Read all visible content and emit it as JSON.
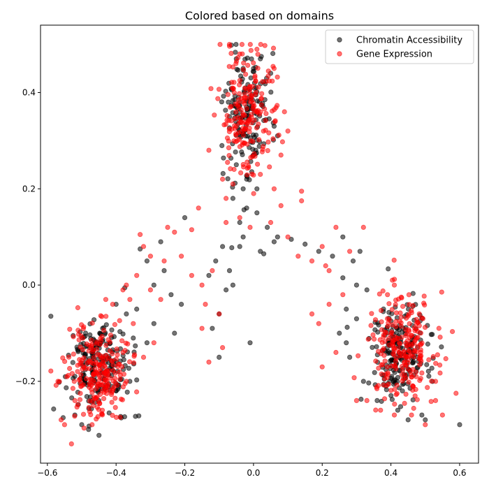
{
  "chart_data": {
    "type": "scatter",
    "title": "Colored based on domains",
    "xlabel": "",
    "ylabel": "",
    "xlim": [
      -0.62,
      0.655
    ],
    "ylim": [
      -0.37,
      0.54
    ],
    "x_ticks": [
      -0.6,
      -0.4,
      -0.2,
      0.0,
      0.2,
      0.4,
      0.6
    ],
    "x_tick_labels": [
      "−0.6",
      "−0.4",
      "−0.2",
      "0.0",
      "0.2",
      "0.4",
      "0.6"
    ],
    "y_ticks": [
      -0.2,
      0.0,
      0.2,
      0.4
    ],
    "y_tick_labels": [
      "−0.2",
      "0.0",
      "0.2",
      "0.4"
    ],
    "grid": false,
    "legend_position": "top-right",
    "series": [
      {
        "name": "Chromatin Accessibility",
        "color": "#000000",
        "alpha": 0.55,
        "clusters": [
          {
            "cx": -0.45,
            "cy": -0.17,
            "sx": 0.045,
            "sy": 0.05,
            "n": 200
          },
          {
            "cx": -0.02,
            "cy": 0.36,
            "sx": 0.035,
            "sy": 0.06,
            "n": 150
          },
          {
            "cx": 0.43,
            "cy": -0.14,
            "sx": 0.045,
            "sy": 0.05,
            "n": 200
          }
        ],
        "points": [
          {
            "x": -0.05,
            "y": 0.47
          },
          {
            "x": -0.03,
            "y": 0.45
          },
          {
            "x": 0.0,
            "y": 0.45
          },
          {
            "x": 0.05,
            "y": 0.44
          },
          {
            "x": 0.02,
            "y": 0.47
          },
          {
            "x": -0.04,
            "y": 0.38
          },
          {
            "x": -0.07,
            "y": 0.35
          },
          {
            "x": 0.06,
            "y": 0.33
          },
          {
            "x": 0.07,
            "y": 0.31
          },
          {
            "x": -0.05,
            "y": 0.25
          },
          {
            "x": -0.02,
            "y": 0.22
          },
          {
            "x": 0.0,
            "y": 0.27
          },
          {
            "x": -0.03,
            "y": 0.2
          },
          {
            "x": 0.01,
            "y": 0.2
          },
          {
            "x": -0.06,
            "y": 0.18
          },
          {
            "x": -0.02,
            "y": 0.16
          },
          {
            "x": 0.01,
            "y": 0.15
          },
          {
            "x": -0.04,
            "y": 0.13
          },
          {
            "x": -0.09,
            "y": 0.08
          },
          {
            "x": -0.04,
            "y": 0.08
          },
          {
            "x": -0.03,
            "y": 0.1
          },
          {
            "x": 0.04,
            "y": 0.12
          },
          {
            "x": 0.07,
            "y": 0.1
          },
          {
            "x": 0.02,
            "y": 0.07
          },
          {
            "x": -0.11,
            "y": 0.05
          },
          {
            "x": -0.07,
            "y": 0.03
          },
          {
            "x": -0.13,
            "y": 0.02
          },
          {
            "x": -0.06,
            "y": 0.0
          },
          {
            "x": -0.08,
            "y": -0.01
          },
          {
            "x": -0.1,
            "y": -0.06
          },
          {
            "x": -0.12,
            "y": -0.09
          },
          {
            "x": -0.1,
            "y": -0.15
          },
          {
            "x": -0.01,
            "y": -0.12
          },
          {
            "x": -0.27,
            "y": 0.09
          },
          {
            "x": -0.2,
            "y": 0.14
          },
          {
            "x": -0.33,
            "y": 0.075
          },
          {
            "x": -0.31,
            "y": 0.05
          },
          {
            "x": -0.26,
            "y": 0.03
          },
          {
            "x": -0.29,
            "y": 0.0
          },
          {
            "x": -0.24,
            "y": -0.02
          },
          {
            "x": -0.21,
            "y": -0.04
          },
          {
            "x": -0.34,
            "y": -0.05
          },
          {
            "x": -0.29,
            "y": -0.08
          },
          {
            "x": -0.23,
            "y": -0.1
          },
          {
            "x": -0.31,
            "y": -0.12
          },
          {
            "x": -0.35,
            "y": -0.11
          },
          {
            "x": -0.37,
            "y": -0.06
          },
          {
            "x": -0.4,
            "y": -0.04
          },
          {
            "x": 0.03,
            "y": 0.065
          },
          {
            "x": 0.06,
            "y": 0.09
          },
          {
            "x": 0.11,
            "y": 0.095
          },
          {
            "x": 0.15,
            "y": 0.085
          },
          {
            "x": 0.19,
            "y": 0.07
          },
          {
            "x": 0.23,
            "y": 0.06
          },
          {
            "x": 0.26,
            "y": 0.1
          },
          {
            "x": 0.29,
            "y": 0.05
          },
          {
            "x": 0.31,
            "y": 0.07
          },
          {
            "x": 0.26,
            "y": 0.015
          },
          {
            "x": 0.3,
            "y": 0.0
          },
          {
            "x": 0.33,
            "y": -0.01
          },
          {
            "x": 0.27,
            "y": -0.05
          },
          {
            "x": 0.3,
            "y": -0.07
          },
          {
            "x": 0.25,
            "y": -0.1
          },
          {
            "x": 0.27,
            "y": -0.12
          },
          {
            "x": 0.28,
            "y": -0.15
          },
          {
            "x": 0.32,
            "y": -0.2
          },
          {
            "x": 0.36,
            "y": -0.24
          },
          {
            "x": 0.42,
            "y": -0.26
          },
          {
            "x": 0.45,
            "y": -0.28
          },
          {
            "x": 0.49,
            "y": -0.27
          },
          {
            "x": 0.5,
            "y": -0.28
          },
          {
            "x": 0.6,
            "y": -0.29
          },
          {
            "x": -0.5,
            "y": -0.29
          },
          {
            "x": -0.48,
            "y": -0.3
          },
          {
            "x": -0.52,
            "y": -0.27
          },
          {
            "x": -0.45,
            "y": -0.24
          },
          {
            "x": -0.4,
            "y": -0.22
          },
          {
            "x": -0.36,
            "y": -0.2
          }
        ]
      },
      {
        "name": "Gene Expression",
        "color": "#ff0000",
        "alpha": 0.55,
        "clusters": [
          {
            "cx": -0.45,
            "cy": -0.18,
            "sx": 0.045,
            "sy": 0.05,
            "n": 230
          },
          {
            "cx": -0.02,
            "cy": 0.36,
            "sx": 0.04,
            "sy": 0.065,
            "n": 200
          },
          {
            "cx": 0.43,
            "cy": -0.13,
            "sx": 0.05,
            "sy": 0.055,
            "n": 230
          }
        ],
        "points": [
          {
            "x": -0.04,
            "y": 0.48
          },
          {
            "x": 0.01,
            "y": 0.49
          },
          {
            "x": 0.06,
            "y": 0.45
          },
          {
            "x": 0.09,
            "y": 0.36
          },
          {
            "x": 0.1,
            "y": 0.32
          },
          {
            "x": 0.08,
            "y": 0.27
          },
          {
            "x": -0.13,
            "y": 0.28
          },
          {
            "x": -0.09,
            "y": 0.22
          },
          {
            "x": -0.06,
            "y": 0.21
          },
          {
            "x": 0.02,
            "y": 0.23
          },
          {
            "x": 0.06,
            "y": 0.2
          },
          {
            "x": 0.14,
            "y": 0.195
          },
          {
            "x": 0.14,
            "y": 0.175
          },
          {
            "x": 0.08,
            "y": 0.165
          },
          {
            "x": -0.16,
            "y": 0.16
          },
          {
            "x": -0.08,
            "y": 0.18
          },
          {
            "x": -0.04,
            "y": 0.14
          },
          {
            "x": 0.05,
            "y": 0.13
          },
          {
            "x": 0.1,
            "y": 0.1
          },
          {
            "x": -0.08,
            "y": 0.13
          },
          {
            "x": -0.01,
            "y": 0.12
          },
          {
            "x": -0.25,
            "y": 0.12
          },
          {
            "x": -0.23,
            "y": 0.11
          },
          {
            "x": -0.18,
            "y": 0.115
          },
          {
            "x": -0.33,
            "y": 0.105
          },
          {
            "x": -0.32,
            "y": 0.08
          },
          {
            "x": -0.3,
            "y": 0.06
          },
          {
            "x": -0.21,
            "y": 0.06
          },
          {
            "x": -0.26,
            "y": 0.05
          },
          {
            "x": -0.18,
            "y": 0.02
          },
          {
            "x": -0.15,
            "y": 0.0
          },
          {
            "x": -0.12,
            "y": 0.03
          },
          {
            "x": -0.14,
            "y": -0.04
          },
          {
            "x": -0.1,
            "y": -0.06
          },
          {
            "x": -0.15,
            "y": -0.09
          },
          {
            "x": -0.13,
            "y": -0.16
          },
          {
            "x": -0.09,
            "y": -0.13
          },
          {
            "x": -0.27,
            "y": -0.03
          },
          {
            "x": -0.29,
            "y": -0.12
          },
          {
            "x": -0.32,
            "y": -0.15
          },
          {
            "x": -0.35,
            "y": -0.08
          },
          {
            "x": -0.38,
            "y": -0.01
          },
          {
            "x": -0.34,
            "y": 0.02
          },
          {
            "x": -0.36,
            "y": -0.03
          },
          {
            "x": 0.13,
            "y": 0.06
          },
          {
            "x": 0.17,
            "y": 0.05
          },
          {
            "x": 0.21,
            "y": 0.04
          },
          {
            "x": 0.2,
            "y": 0.08
          },
          {
            "x": 0.24,
            "y": 0.12
          },
          {
            "x": 0.28,
            "y": 0.07
          },
          {
            "x": 0.32,
            "y": 0.12
          },
          {
            "x": 0.22,
            "y": 0.03
          },
          {
            "x": 0.17,
            "y": -0.06
          },
          {
            "x": 0.19,
            "y": -0.08
          },
          {
            "x": 0.2,
            "y": -0.17
          },
          {
            "x": 0.22,
            "y": -0.04
          },
          {
            "x": 0.26,
            "y": -0.02
          },
          {
            "x": 0.24,
            "y": -0.14
          },
          {
            "x": 0.3,
            "y": -0.24
          },
          {
            "x": 0.33,
            "y": -0.24
          },
          {
            "x": 0.37,
            "y": -0.26
          },
          {
            "x": 0.41,
            "y": -0.27
          },
          {
            "x": 0.46,
            "y": -0.27
          },
          {
            "x": 0.53,
            "y": -0.24
          },
          {
            "x": 0.55,
            "y": -0.27
          },
          {
            "x": 0.53,
            "y": -0.2
          },
          {
            "x": 0.5,
            "y": -0.29
          },
          {
            "x": 0.41,
            "y": 0.0
          },
          {
            "x": 0.39,
            "y": -0.02
          },
          {
            "x": -0.56,
            "y": -0.28
          },
          {
            "x": -0.55,
            "y": -0.29
          },
          {
            "x": -0.53,
            "y": -0.33
          },
          {
            "x": -0.52,
            "y": -0.24
          },
          {
            "x": -0.47,
            "y": -0.29
          },
          {
            "x": -0.44,
            "y": -0.26
          },
          {
            "x": -0.39,
            "y": -0.18
          },
          {
            "x": -0.37,
            "y": -0.2
          },
          {
            "x": -0.41,
            "y": -0.04
          },
          {
            "x": -0.43,
            "y": -0.03
          },
          {
            "x": -0.37,
            "y": 0.0
          },
          {
            "x": -0.3,
            "y": -0.01
          }
        ]
      }
    ]
  }
}
